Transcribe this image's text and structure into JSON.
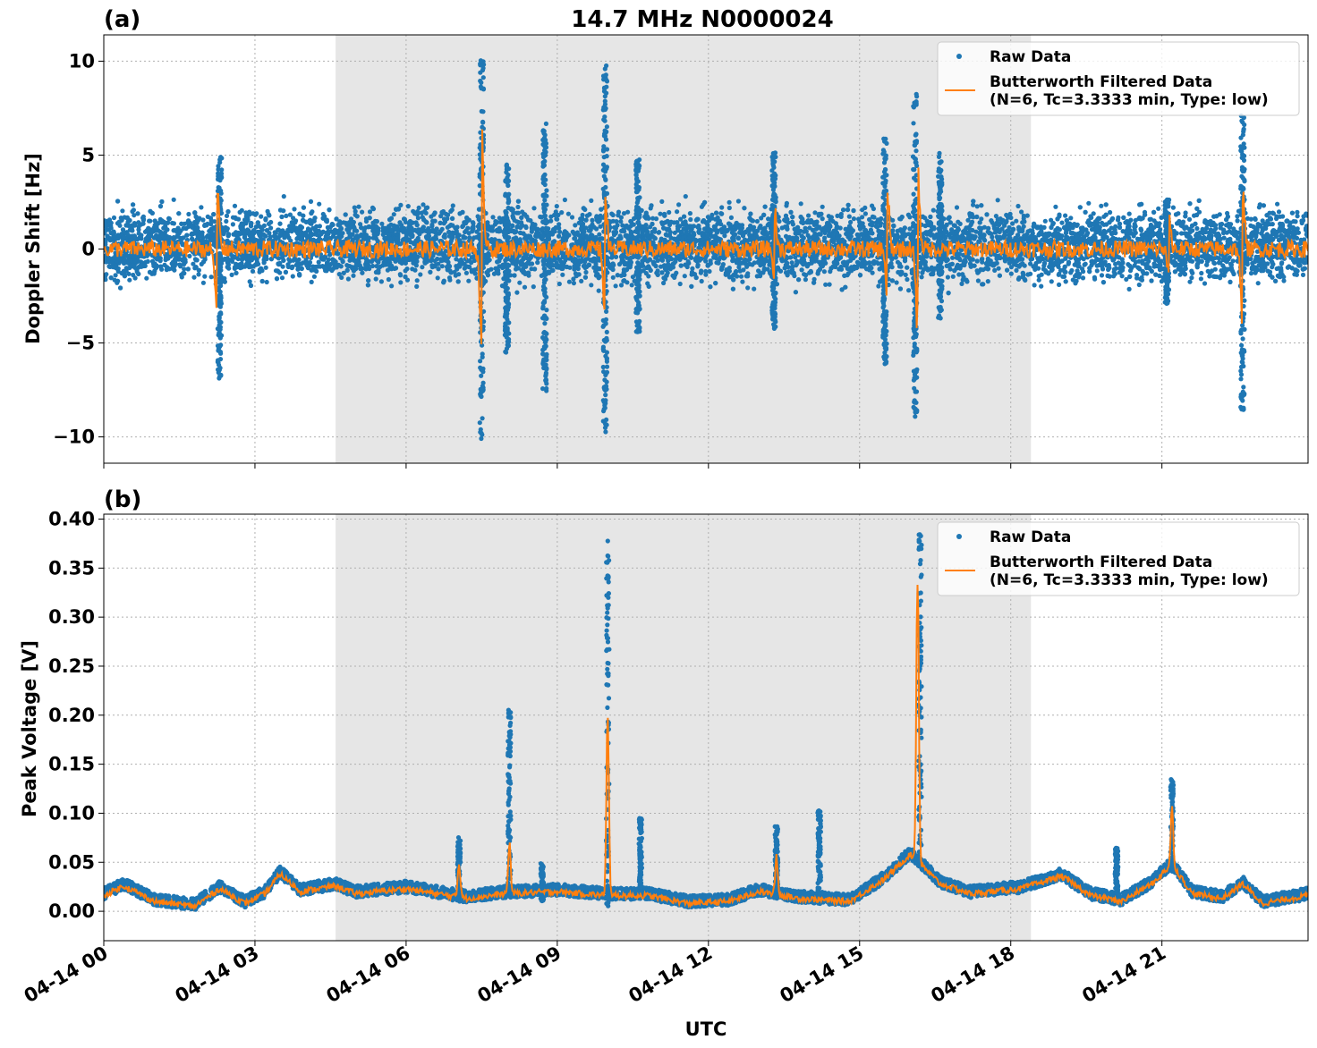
{
  "figure_title": "14.7 MHz N0000024",
  "colors": {
    "raw": "#1f77b4",
    "filtered": "#ff7f0e",
    "shade": "#e6e6e6",
    "grid": "#b0b0b0"
  },
  "chart_data": [
    {
      "type": "scatter",
      "panel_label": "(a)",
      "ylabel": "Doppler Shift [Hz]",
      "xlabel": "",
      "xlim_hours": [
        0,
        23.9
      ],
      "ylim": [
        -11.4,
        11.4
      ],
      "yticks": [
        -10,
        -5,
        0,
        5,
        10
      ],
      "ytick_labels": [
        "−10",
        "−5",
        "0",
        "5",
        "10"
      ],
      "grid": true,
      "legend_position": "top-right",
      "shaded_interval_hours": [
        4.6,
        18.4
      ],
      "series": [
        {
          "name": "Raw Data",
          "style": "points",
          "baseline_band": [
            -1.6,
            2.0
          ],
          "events": [
            {
              "t": 2.3,
              "min": -6.9,
              "max": 4.9
            },
            {
              "t": 7.5,
              "min": -10.4,
              "max": 10.4
            },
            {
              "t": 8.0,
              "min": -5.5,
              "max": 4.6
            },
            {
              "t": 8.75,
              "min": -7.6,
              "max": 6.8
            },
            {
              "t": 9.95,
              "min": -9.9,
              "max": 10.3
            },
            {
              "t": 10.6,
              "min": -4.5,
              "max": 4.8
            },
            {
              "t": 13.3,
              "min": -4.3,
              "max": 5.2
            },
            {
              "t": 15.5,
              "min": -6.2,
              "max": 6.0
            },
            {
              "t": 16.1,
              "min": -9.1,
              "max": 8.4
            },
            {
              "t": 16.6,
              "min": -3.8,
              "max": 5.1
            },
            {
              "t": 21.1,
              "min": -3.0,
              "max": 2.7
            },
            {
              "t": 22.6,
              "min": -8.6,
              "max": 7.1
            }
          ]
        },
        {
          "name": "Butterworth Filtered Data\n(N=6, Tc=3.3333 min, Type: low)",
          "style": "line",
          "events": [
            {
              "t": 2.25,
              "min": -4.7,
              "max": 3.5
            },
            {
              "t": 7.5,
              "min": -6.4,
              "max": 8.1
            },
            {
              "t": 9.95,
              "min": -4.1,
              "max": 3.8
            },
            {
              "t": 13.3,
              "min": -2.0,
              "max": 3.1
            },
            {
              "t": 15.55,
              "min": -2.6,
              "max": 3.5
            },
            {
              "t": 16.15,
              "min": -4.6,
              "max": 5.5
            },
            {
              "t": 21.15,
              "min": -2.0,
              "max": 1.7
            },
            {
              "t": 22.6,
              "min": -4.7,
              "max": 3.9
            }
          ]
        }
      ]
    },
    {
      "type": "scatter",
      "panel_label": "(b)",
      "ylabel": "Peak Voltage [V]",
      "xlabel": "UTC",
      "xlim_hours": [
        0,
        23.9
      ],
      "ylim": [
        -0.03,
        0.405
      ],
      "yticks": [
        0.0,
        0.05,
        0.1,
        0.15,
        0.2,
        0.25,
        0.3,
        0.35,
        0.4
      ],
      "ytick_labels": [
        "0.00",
        "0.05",
        "0.10",
        "0.15",
        "0.20",
        "0.25",
        "0.30",
        "0.35",
        "0.40"
      ],
      "grid": true,
      "legend_position": "top-right",
      "shaded_interval_hours": [
        4.6,
        18.4
      ],
      "series": [
        {
          "name": "Raw Data",
          "style": "points",
          "baseline_knots": [
            [
              0,
              0.018
            ],
            [
              0.4,
              0.028
            ],
            [
              1.0,
              0.012
            ],
            [
              1.8,
              0.007
            ],
            [
              2.3,
              0.025
            ],
            [
              2.8,
              0.01
            ],
            [
              3.2,
              0.02
            ],
            [
              3.5,
              0.04
            ],
            [
              3.9,
              0.022
            ],
            [
              4.6,
              0.028
            ],
            [
              5.0,
              0.02
            ],
            [
              6.0,
              0.025
            ],
            [
              6.6,
              0.02
            ],
            [
              7.2,
              0.015
            ],
            [
              8.0,
              0.02
            ],
            [
              9.0,
              0.022
            ],
            [
              10.0,
              0.018
            ],
            [
              10.8,
              0.018
            ],
            [
              11.6,
              0.01
            ],
            [
              12.4,
              0.012
            ],
            [
              13.0,
              0.022
            ],
            [
              13.8,
              0.015
            ],
            [
              14.8,
              0.012
            ],
            [
              15.5,
              0.035
            ],
            [
              16.0,
              0.06
            ],
            [
              16.6,
              0.03
            ],
            [
              17.2,
              0.02
            ],
            [
              18.2,
              0.025
            ],
            [
              19.0,
              0.038
            ],
            [
              19.6,
              0.018
            ],
            [
              20.2,
              0.012
            ],
            [
              20.8,
              0.03
            ],
            [
              21.2,
              0.05
            ],
            [
              21.6,
              0.02
            ],
            [
              22.2,
              0.015
            ],
            [
              22.6,
              0.03
            ],
            [
              23.0,
              0.01
            ],
            [
              23.9,
              0.018
            ]
          ],
          "events": [
            {
              "t": 7.05,
              "min": 0.015,
              "max": 0.076
            },
            {
              "t": 8.05,
              "min": 0.02,
              "max": 0.21
            },
            {
              "t": 8.7,
              "min": 0.01,
              "max": 0.05
            },
            {
              "t": 10.0,
              "min": 0.0,
              "max": 0.38
            },
            {
              "t": 10.65,
              "min": 0.02,
              "max": 0.095
            },
            {
              "t": 13.35,
              "min": 0.02,
              "max": 0.087
            },
            {
              "t": 14.2,
              "min": 0.015,
              "max": 0.103
            },
            {
              "t": 16.2,
              "min": 0.05,
              "max": 0.386
            },
            {
              "t": 20.1,
              "min": 0.02,
              "max": 0.065
            },
            {
              "t": 21.2,
              "min": 0.04,
              "max": 0.137
            }
          ]
        },
        {
          "name": "Butterworth Filtered Data\n(N=6, Tc=3.3333 min, Type: low)",
          "style": "line",
          "events": [
            {
              "t": 7.05,
              "min": 0.01,
              "max": 0.055
            },
            {
              "t": 8.05,
              "min": 0.005,
              "max": 0.075
            },
            {
              "t": 10.0,
              "min": -0.01,
              "max": 0.21
            },
            {
              "t": 13.35,
              "min": 0.015,
              "max": 0.062
            },
            {
              "t": 16.15,
              "min": 0.04,
              "max": 0.38
            },
            {
              "t": 21.2,
              "min": 0.03,
              "max": 0.112
            }
          ]
        }
      ]
    }
  ],
  "x_tick_hours": [
    0,
    3,
    6,
    9,
    12,
    15,
    18,
    21
  ],
  "x_tick_labels": [
    "04-14 00",
    "04-14 03",
    "04-14 06",
    "04-14 09",
    "04-14 12",
    "04-14 15",
    "04-14 18",
    "04-14 21"
  ],
  "legend": {
    "raw_label": "Raw Data",
    "filtered_label_line1": "Butterworth Filtered Data",
    "filtered_label_line2": "(N=6, Tc=3.3333 min, Type: low)"
  }
}
